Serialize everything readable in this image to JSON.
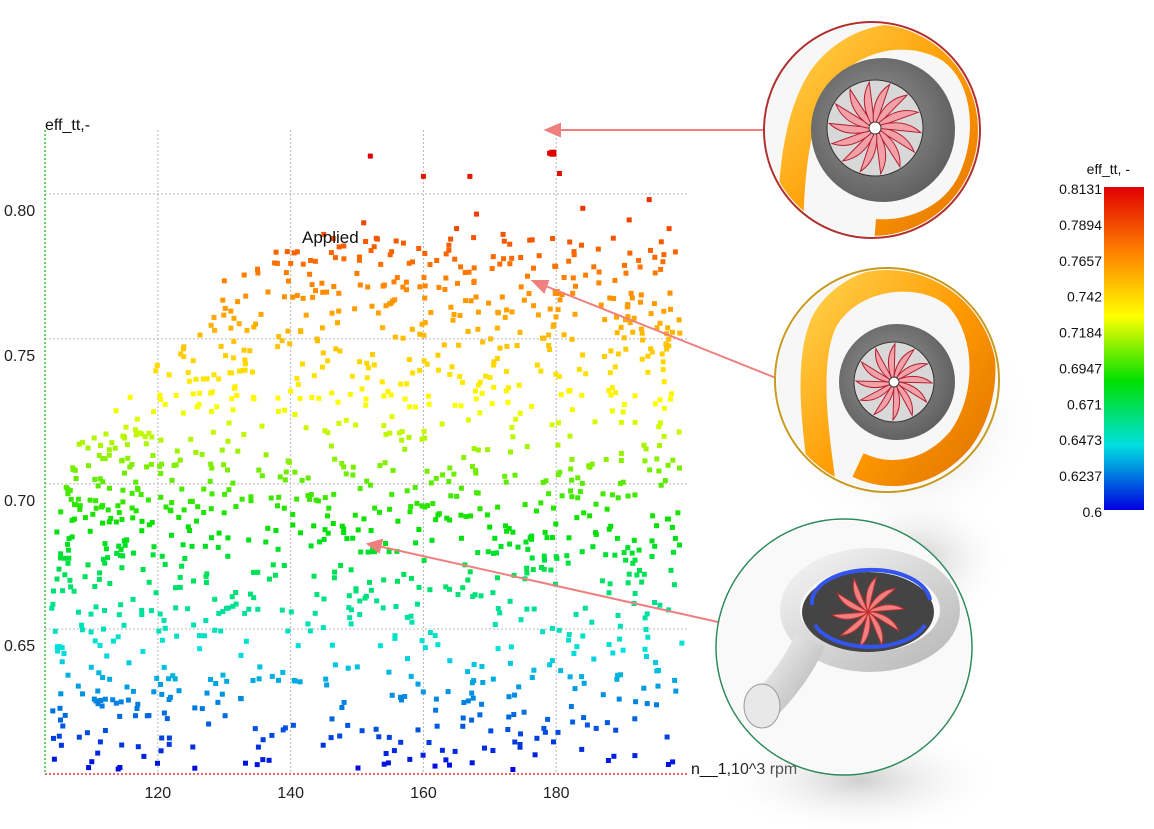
{
  "chart_data": {
    "type": "scatter",
    "title": "",
    "xlabel": "n__1,10^3 rpm",
    "ylabel": "eff_tt,-",
    "xlim": [
      103,
      200
    ],
    "ylim": [
      0.6,
      0.822
    ],
    "x_ticks": [
      120,
      140,
      160,
      180
    ],
    "y_ticks": [
      0.65,
      0.7,
      0.75,
      0.8
    ],
    "x_tick_labels": [
      "120",
      "140",
      "160",
      "180"
    ],
    "y_tick_labels": [
      "0.65",
      "0.70",
      "0.75",
      "0.80"
    ],
    "grid": true,
    "annotation": "Applied",
    "colorbar": {
      "title": "eff_tt, -",
      "min": 0.6,
      "max": 0.8131,
      "labels": [
        "0.8131",
        "0.7894",
        "0.7657",
        "0.742",
        "0.7184",
        "0.6947",
        "0.671",
        "0.6473",
        "0.6237",
        "0.6"
      ],
      "colors": [
        "#e00000",
        "#ff8000",
        "#ffff00",
        "#00e000",
        "#00e0e0",
        "#0000e0"
      ]
    },
    "colored_by": "eff_tt",
    "point_count": 1300,
    "highlighted_points": [
      {
        "x": 179.5,
        "y": 0.814
      },
      {
        "x": 180,
        "y": 0.766
      },
      {
        "x": 152.5,
        "y": 0.677
      }
    ],
    "series": [
      {
        "points": [
          [
            152,
            0.813
          ],
          [
            160,
            0.806
          ],
          [
            167,
            0.806
          ],
          [
            179,
            0.814
          ],
          [
            180.5,
            0.807
          ],
          [
            151,
            0.79
          ],
          [
            168,
            0.793
          ],
          [
            184,
            0.795
          ],
          [
            194,
            0.798
          ],
          [
            197,
            0.788
          ],
          [
            157,
            0.783
          ],
          [
            165,
            0.788
          ],
          [
            172,
            0.786
          ],
          [
            191,
            0.791
          ],
          [
            176,
            0.784
          ],
          [
            145,
            0.786
          ],
          [
            141,
            0.78
          ],
          [
            148,
            0.782
          ],
          [
            135,
            0.774
          ],
          [
            138,
            0.776
          ],
          [
            143,
            0.777
          ],
          [
            130,
            0.77
          ],
          [
            133,
            0.772
          ],
          [
            155,
            0.779
          ],
          [
            162,
            0.777
          ]
        ]
      }
    ]
  },
  "images": {
    "top": {
      "name": "volute-top-render"
    },
    "middle": {
      "name": "volute-middle-render"
    },
    "bottom": {
      "name": "volute-bottom-render"
    }
  }
}
